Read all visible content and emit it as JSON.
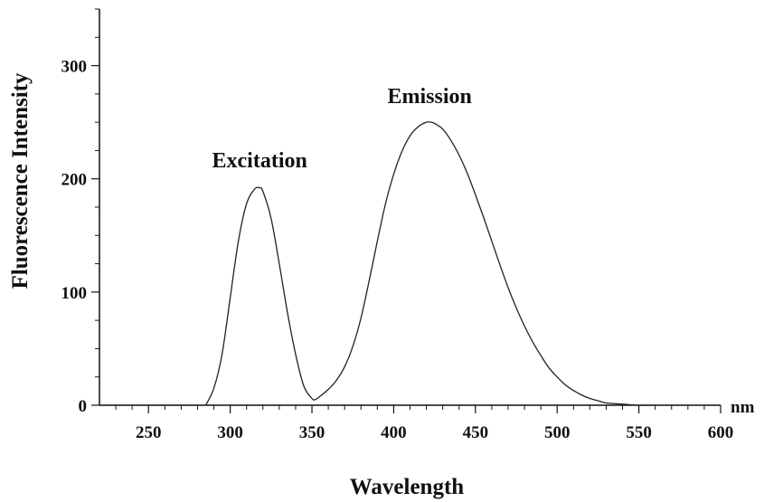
{
  "chart_data": {
    "type": "line",
    "title": "",
    "xlabel": "Wavelength",
    "ylabel": "Fluorescence Intensity",
    "x_unit": "nm",
    "xlim": [
      220,
      600
    ],
    "ylim": [
      0,
      350
    ],
    "xticks": [
      250,
      300,
      350,
      400,
      450,
      500,
      550,
      600
    ],
    "yticks": [
      0,
      100,
      200,
      300
    ],
    "grid": false,
    "annotations": [
      {
        "text": "Excitation",
        "x": 318,
        "y": 210
      },
      {
        "text": "Emission",
        "x": 422,
        "y": 267
      }
    ],
    "series": [
      {
        "x": [
          285,
          290,
          295,
          300,
          305,
          310,
          315,
          318,
          320,
          325,
          330,
          335,
          340,
          345,
          350,
          352,
          355,
          360,
          365,
          370,
          375,
          380,
          385,
          390,
          395,
          400,
          405,
          410,
          415,
          420,
          423,
          425,
          430,
          435,
          440,
          445,
          450,
          455,
          460,
          465,
          470,
          475,
          480,
          485,
          490,
          495,
          500,
          505,
          510,
          515,
          520,
          525,
          530,
          540,
          550,
          560
        ],
        "y": [
          0,
          15,
          45,
          95,
          145,
          178,
          191,
          192,
          189,
          165,
          125,
          82,
          45,
          17,
          6,
          5,
          8,
          14,
          22,
          34,
          52,
          77,
          110,
          145,
          178,
          204,
          224,
          238,
          246,
          250,
          250,
          249,
          244,
          234,
          221,
          205,
          186,
          166,
          145,
          124,
          104,
          86,
          70,
          56,
          44,
          33,
          25,
          18,
          13,
          9,
          6,
          4,
          2,
          1,
          0,
          0
        ]
      }
    ]
  }
}
